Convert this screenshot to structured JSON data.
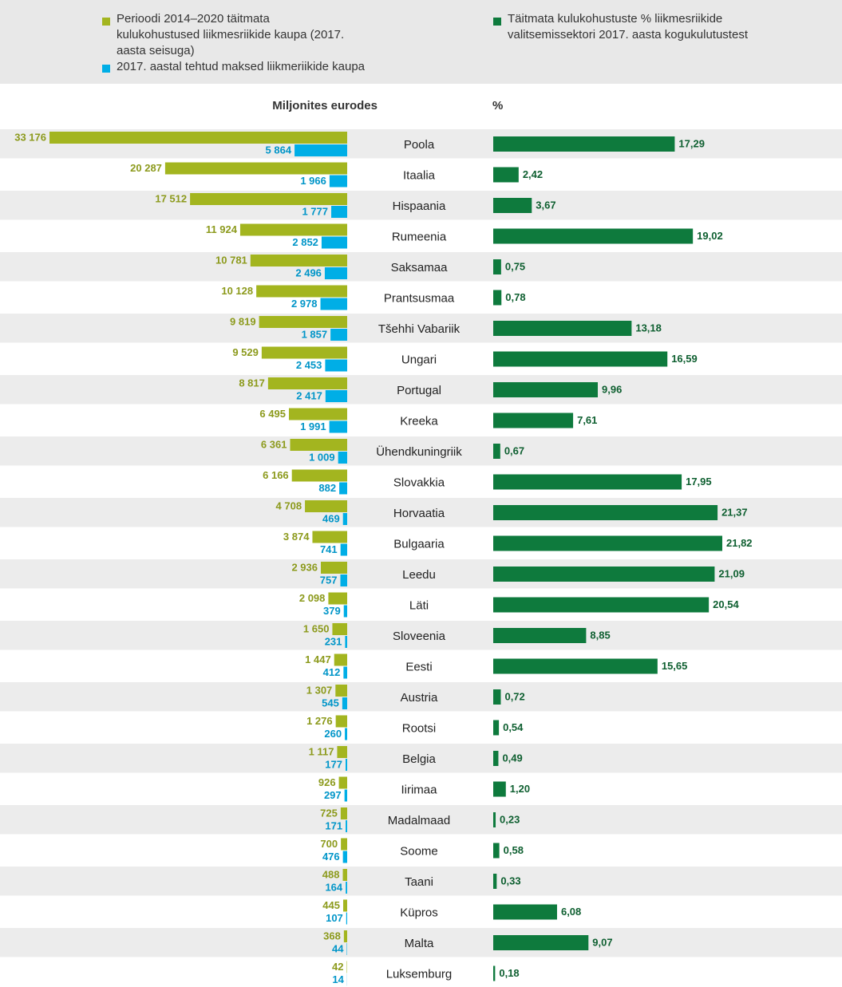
{
  "chart_data": {
    "type": "butterfly",
    "left_axis_label": "Miljonites eurodes",
    "right_axis_label": "%",
    "categories": [
      "Poola",
      "Itaalia",
      "Hispaania",
      "Rumeenia",
      "Saksamaa",
      "Prantsusmaa",
      "Tšehhi Vabariik",
      "Ungari",
      "Portugal",
      "Kreeka",
      "Ühendkuningriik",
      "Slovakkia",
      "Horvaatia",
      "Bulgaaria",
      "Leedu",
      "Läti",
      "Sloveenia",
      "Eesti",
      "Austria",
      "Rootsi",
      "Belgia",
      "Iirimaa",
      "Madalmaad",
      "Soome",
      "Taani",
      "Küpros",
      "Malta",
      "Luksemburg"
    ],
    "series": [
      {
        "name": "Perioodi 2014–2020 täitmata kulukohustused liikmesriikide kaupa (2017. aasta seisuga)",
        "color": "#a3b51f",
        "label_color": "#8c9a1c",
        "values": [
          33176,
          20287,
          17512,
          11924,
          10781,
          10128,
          9819,
          9529,
          8817,
          6495,
          6361,
          6166,
          4708,
          3874,
          2936,
          2098,
          1650,
          1447,
          1307,
          1276,
          1117,
          926,
          725,
          700,
          488,
          445,
          368,
          42
        ],
        "value_labels": [
          "33 176",
          "20 287",
          "17 512",
          "11 924",
          "10 781",
          "10 128",
          "9 819",
          "9 529",
          "8 817",
          "6 495",
          "6 361",
          "6 166",
          "4 708",
          "3 874",
          "2 936",
          "2 098",
          "1 650",
          "1 447",
          "1 307",
          "1 276",
          "1 117",
          "926",
          "725",
          "700",
          "488",
          "445",
          "368",
          "42"
        ]
      },
      {
        "name": "2017. aastal tehtud maksed liikmeriikide kaupa",
        "color": "#00aee6",
        "label_color": "#0095c8",
        "values": [
          5864,
          1966,
          1777,
          2852,
          2496,
          2978,
          1857,
          2453,
          2417,
          1991,
          1009,
          882,
          469,
          741,
          757,
          379,
          231,
          412,
          545,
          260,
          177,
          297,
          171,
          476,
          164,
          107,
          44,
          14
        ],
        "value_labels": [
          "5 864",
          "1 966",
          "1 777",
          "2 852",
          "2 496",
          "2 978",
          "1 857",
          "2 453",
          "2 417",
          "1 991",
          "1 009",
          "882",
          "469",
          "741",
          "757",
          "379",
          "231",
          "412",
          "545",
          "260",
          "177",
          "297",
          "171",
          "476",
          "164",
          "107",
          "44",
          "14"
        ]
      },
      {
        "name": "Täitmata kulukohustuste % liikmesriikide valitsemissektori 2017. aasta kogukulutustest",
        "color": "#0e7a3d",
        "label_color": "#0e5f30",
        "axis": "x2",
        "values": [
          17.29,
          2.42,
          3.67,
          19.02,
          0.75,
          0.78,
          13.18,
          16.59,
          9.96,
          7.61,
          0.67,
          17.95,
          21.37,
          21.82,
          21.09,
          20.54,
          8.85,
          15.65,
          0.72,
          0.54,
          0.49,
          1.2,
          0.23,
          0.58,
          0.33,
          6.08,
          9.07,
          0.18
        ],
        "value_labels": [
          "17,29",
          "2,42",
          "3,67",
          "19,02",
          "0,75",
          "0,78",
          "13,18",
          "16,59",
          "9,96",
          "7,61",
          "0,67",
          "17,95",
          "21,37",
          "21,82",
          "21,09",
          "20,54",
          "8,85",
          "15,65",
          "0,72",
          "0,54",
          "0,49",
          "1,20",
          "0,23",
          "0,58",
          "0,33",
          "6,08",
          "9,07",
          "0,18"
        ]
      }
    ]
  }
}
